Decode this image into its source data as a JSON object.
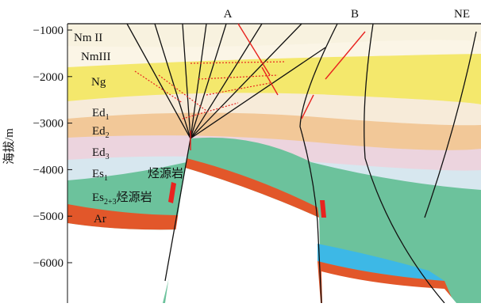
{
  "axis": {
    "label": "海拔/m",
    "ticks": [
      "−1000",
      "−2000",
      "−3000",
      "−4000",
      "−5000",
      "−6000"
    ]
  },
  "faults": [
    {
      "label": "A"
    },
    {
      "label": "B"
    },
    {
      "label": "NE"
    }
  ],
  "layers": [
    {
      "text": "Nm II"
    },
    {
      "text": "NmIII"
    },
    {
      "text": "Ng"
    },
    {
      "text": "Ed",
      "sub": "1"
    },
    {
      "text": "Ed",
      "sub": "2"
    },
    {
      "text": "Ed",
      "sub": "3"
    },
    {
      "text": "Es",
      "sub": "1",
      "note": "烃源岩"
    },
    {
      "text": "Es",
      "sub": "2+3",
      "note": "烃源岩"
    },
    {
      "text": "Ar"
    }
  ]
}
